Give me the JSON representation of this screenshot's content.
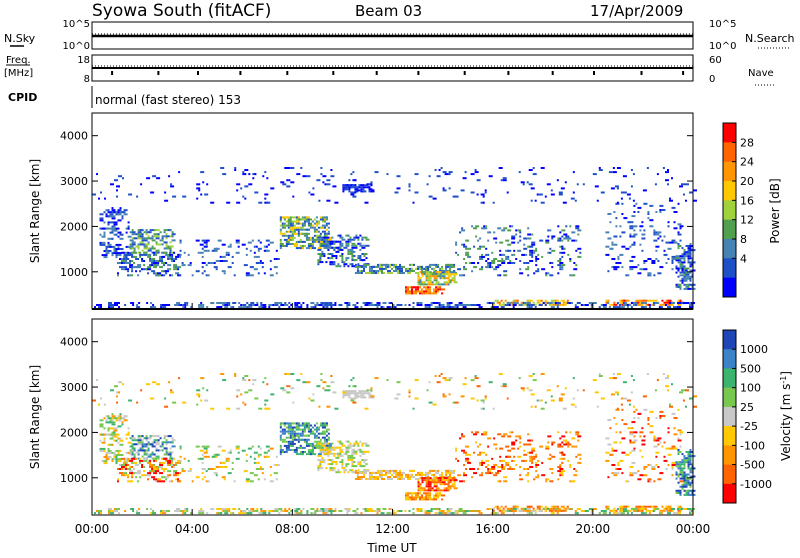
{
  "header": {
    "title": "Syowa South (fitACF)",
    "beam": "Beam 03",
    "date": "17/Apr/2009"
  },
  "top_panels": {
    "left_label_1": "N.Sky",
    "left_label_2a": "Freq.",
    "left_label_2b": "[MHz]",
    "cpid_label": "CPID",
    "right_label_1": "N.Search",
    "right_label_2": "Nave",
    "nsky_ticks": [
      "10^5",
      "10^0"
    ],
    "freq_ticks": [
      "18",
      "8"
    ],
    "nave_ticks": [
      "60",
      "0"
    ],
    "cpid_text": "normal (fast stereo) 153"
  },
  "chart_data": [
    {
      "type": "heatmap",
      "name": "power",
      "ylabel": "Slant Range [km]",
      "xlabel": "",
      "yticks": [
        "4000",
        "3000",
        "2000",
        "1000"
      ],
      "ylim": [
        180,
        4500
      ],
      "xlim_hours": [
        0,
        24
      ],
      "colorbar": {
        "label": "Power [dB]",
        "ticks": [
          "28",
          "24",
          "20",
          "16",
          "12",
          "8",
          "4"
        ],
        "colors": [
          "#ff0000",
          "#ff6400",
          "#ff9600",
          "#ffc800",
          "#a0d23c",
          "#50a050",
          "#4682b4",
          "#1e50c8",
          "#0000ff"
        ]
      }
    },
    {
      "type": "heatmap",
      "name": "velocity",
      "ylabel": "Slant Range [km]",
      "xlabel": "Time UT",
      "yticks": [
        "4000",
        "3000",
        "2000",
        "1000"
      ],
      "ylim": [
        180,
        4500
      ],
      "xlim_hours": [
        0,
        24
      ],
      "xticks": [
        "00:00",
        "04:00",
        "08:00",
        "12:00",
        "16:00",
        "20:00",
        "00:00"
      ],
      "colorbar": {
        "label": "Velocity [m s",
        "label_sup": "-1",
        "label_end": "]",
        "ticks": [
          "1000",
          "500",
          "100",
          "25",
          "-25",
          "-100",
          "-500",
          "-1000"
        ],
        "colors": [
          "#1e46b4",
          "#3c82c8",
          "#3cb46e",
          "#78c850",
          "#c8c8c8",
          "#ffc800",
          "#ff9600",
          "#ff6400",
          "#ff0000"
        ]
      }
    }
  ]
}
